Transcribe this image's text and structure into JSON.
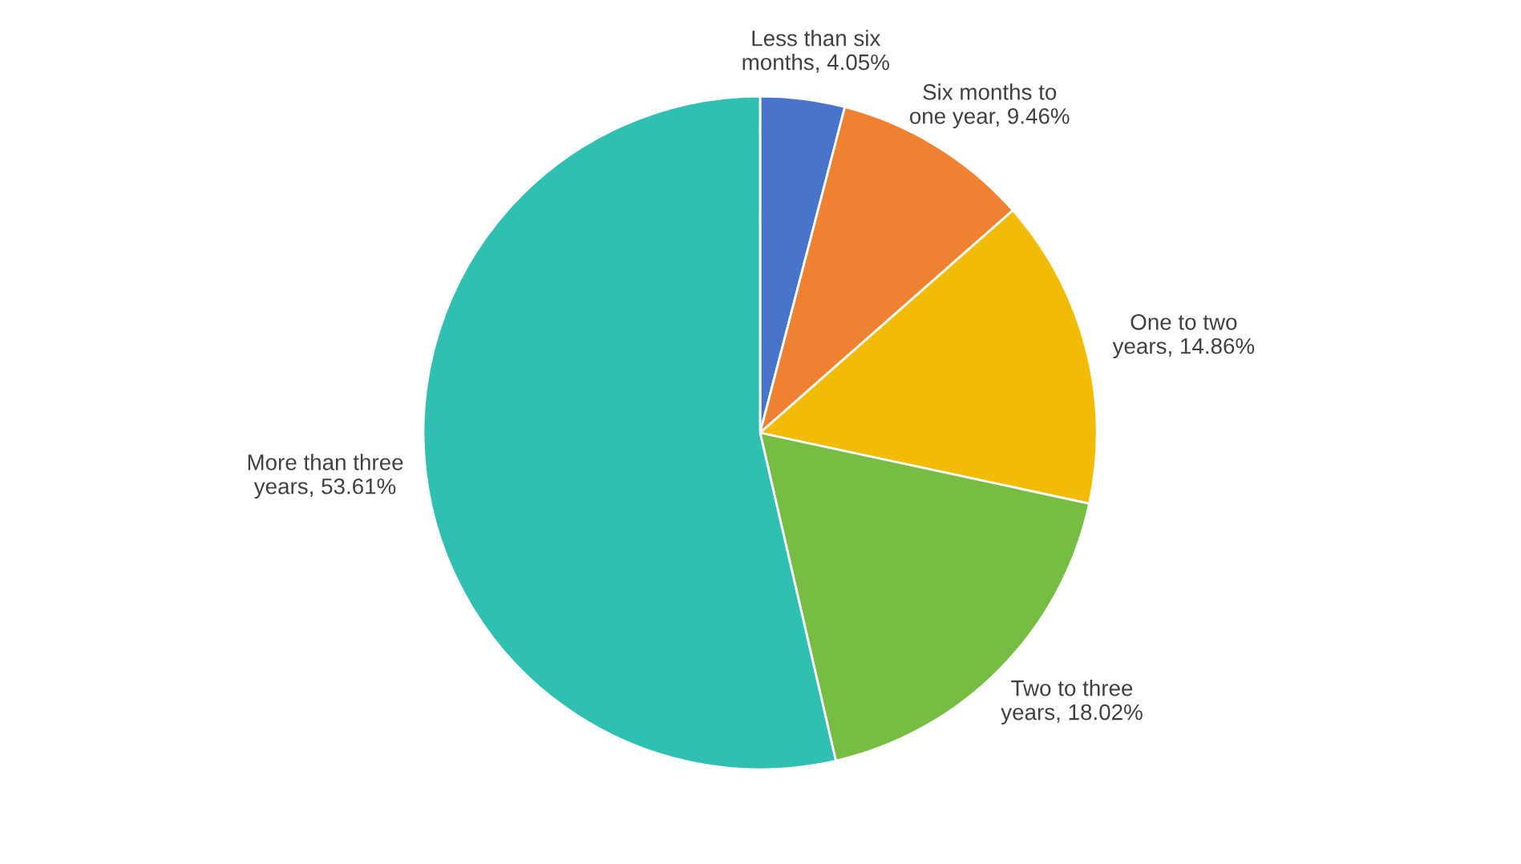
{
  "chart_data": {
    "type": "pie",
    "categories": [
      "Less than six months",
      "Six months to one year",
      "One to two years",
      "Two to three years",
      "More than three years"
    ],
    "values": [
      4.05,
      9.46,
      14.86,
      18.02,
      53.61
    ],
    "value_labels": [
      "4.05%",
      "9.46%",
      "14.86%",
      "18.02%",
      "53.61%"
    ],
    "colors": [
      "#4874c9",
      "#ef8232",
      "#f2bb05",
      "#77bd43",
      "#30c0b2"
    ],
    "legend": false
  }
}
